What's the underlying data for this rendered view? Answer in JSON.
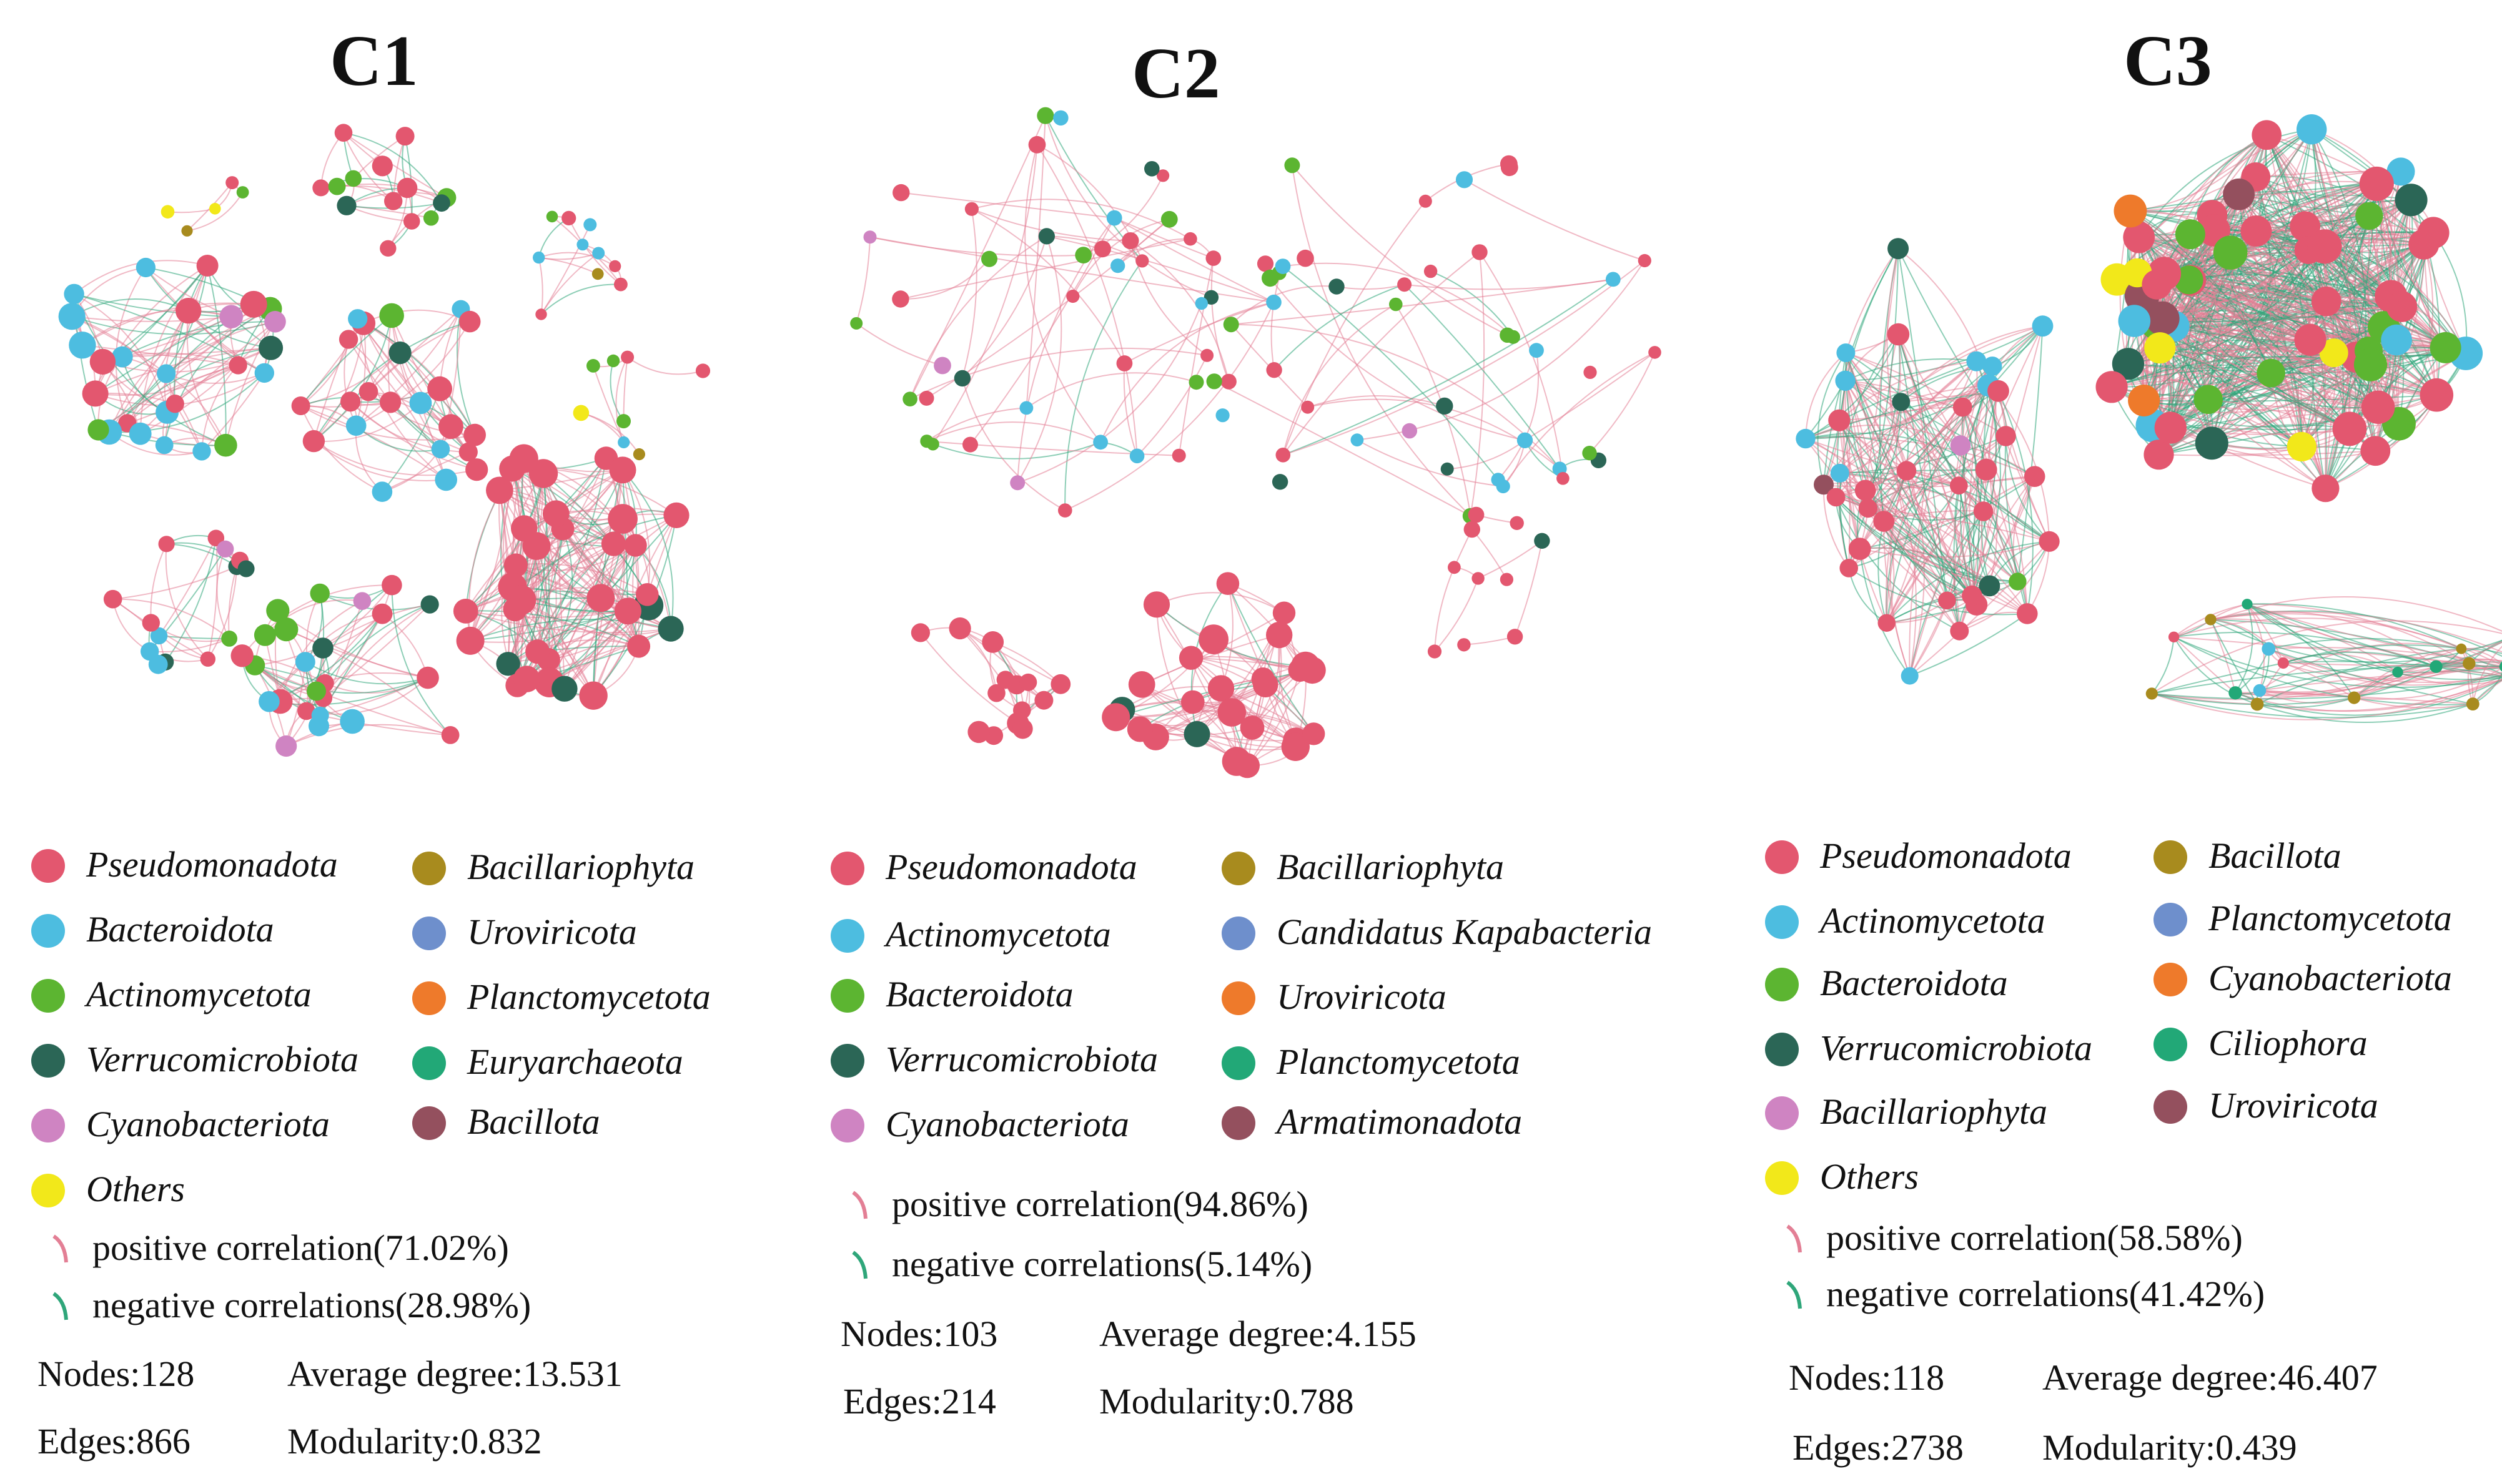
{
  "colors": {
    "Pseudomonadota": "#e3576f",
    "Bacteroidota": "#4dbde0",
    "Actinomycetota": "#5cb531",
    "Verrucomicrobiota": "#2b6656",
    "Cyanobacteriota": "#cf84c2",
    "Others": "#f2e81a",
    "Bacillariophyta": "#a88b1e",
    "Uroviricota": "#6e8fcc",
    "Planctomycetota": "#ee7a2b",
    "Euryarchaeota": "#22a877",
    "Bacillota": "#94505e",
    "Candidatus Kapabacteria": "#6e8fcc",
    "Armatimonadota": "#94505e",
    "Ciliophora": "#22a877",
    "positive_edge": "#e37f95",
    "negative_edge": "#2fa67a"
  },
  "panels": [
    {
      "title": "C1",
      "legend": [
        {
          "name": "Pseudomonadota",
          "color": "#e3576f"
        },
        {
          "name": "Bacteroidota",
          "color": "#4dbde0"
        },
        {
          "name": "Actinomycetota",
          "color": "#5cb531"
        },
        {
          "name": "Verrucomicrobiota",
          "color": "#2b6656"
        },
        {
          "name": "Cyanobacteriota",
          "color": "#cf84c2"
        },
        {
          "name": "Others",
          "color": "#f2e81a"
        },
        {
          "name": "Bacillariophyta",
          "color": "#a88b1e"
        },
        {
          "name": "Uroviricota",
          "color": "#6e8fcc"
        },
        {
          "name": "Planctomycetota",
          "color": "#ee7a2b"
        },
        {
          "name": "Euryarchaeota",
          "color": "#22a877"
        },
        {
          "name": "Bacillota",
          "color": "#94505e"
        }
      ],
      "positive_label": "positive correlation(71.02%)",
      "negative_label": "negative correlations(28.98%)",
      "positive_pct": 71.02,
      "negative_pct": 28.98,
      "stats": {
        "nodes_label": "Nodes:",
        "nodes": "128",
        "edges_label": "Edges:",
        "edges": "866",
        "degree_label": "Average degree:",
        "degree": "13.531",
        "modularity_label": "Modularity:",
        "modularity": "0.832"
      }
    },
    {
      "title": "C2",
      "legend": [
        {
          "name": "Pseudomonadota",
          "color": "#e3576f"
        },
        {
          "name": "Actinomycetota",
          "color": "#4dbde0"
        },
        {
          "name": "Bacteroidota",
          "color": "#5cb531"
        },
        {
          "name": "Verrucomicrobiota",
          "color": "#2b6656"
        },
        {
          "name": "Cyanobacteriota",
          "color": "#cf84c2"
        },
        {
          "name": "Bacillariophyta",
          "color": "#a88b1e"
        },
        {
          "name": "Candidatus Kapabacteria",
          "color": "#6e8fcc"
        },
        {
          "name": "Uroviricota",
          "color": "#ee7a2b"
        },
        {
          "name": "Planctomycetota",
          "color": "#22a877"
        },
        {
          "name": "Armatimonadota",
          "color": "#94505e"
        }
      ],
      "positive_label": "positive correlation(94.86%)",
      "negative_label": "negative correlations(5.14%)",
      "positive_pct": 94.86,
      "negative_pct": 5.14,
      "stats": {
        "nodes_label": "Nodes:",
        "nodes": "103",
        "edges_label": "Edges:",
        "edges": "214",
        "degree_label": "Average degree:",
        "degree": "4.155",
        "modularity_label": "Modularity:",
        "modularity": "0.788"
      }
    },
    {
      "title": "C3",
      "legend": [
        {
          "name": "Pseudomonadota",
          "color": "#e3576f"
        },
        {
          "name": "Actinomycetota",
          "color": "#4dbde0"
        },
        {
          "name": "Bacteroidota",
          "color": "#5cb531"
        },
        {
          "name": "Verrucomicrobiota",
          "color": "#2b6656"
        },
        {
          "name": "Bacillariophyta",
          "color": "#cf84c2"
        },
        {
          "name": "Others",
          "color": "#f2e81a"
        },
        {
          "name": "Bacillota",
          "color": "#a88b1e"
        },
        {
          "name": "Planctomycetota",
          "color": "#6e8fcc"
        },
        {
          "name": "Cyanobacteriota",
          "color": "#ee7a2b"
        },
        {
          "name": "Ciliophora",
          "color": "#22a877"
        },
        {
          "name": "Uroviricota",
          "color": "#94505e"
        }
      ],
      "positive_label": "positive correlation(58.58%)",
      "negative_label": "negative correlations(41.42%)",
      "positive_pct": 58.58,
      "negative_pct": 41.42,
      "stats": {
        "nodes_label": "Nodes:",
        "nodes": "118",
        "edges_label": "Edges:",
        "edges": "2738",
        "degree_label": "Average degree:",
        "degree": "46.407",
        "modularity_label": "Modularity:",
        "modularity": "0.439"
      }
    }
  ]
}
